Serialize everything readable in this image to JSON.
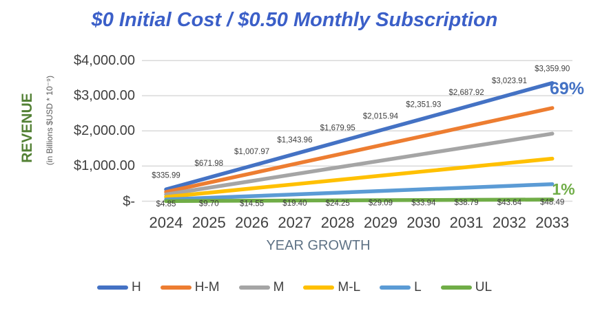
{
  "title": {
    "text": "$0 Initial Cost / $0.50 Monthly Subscription",
    "color": "#3B5FC8"
  },
  "y_axis": {
    "title": "REVENUE",
    "title_color": "#538135",
    "subtitle": "(in Billions $USD * 10⁻⁹)",
    "ticks": [
      "$4,000.00",
      "$3,000.00",
      "$2,000.00",
      "$1,000.00",
      "$-"
    ]
  },
  "x_axis": {
    "title": "YEAR GROWTH"
  },
  "annotations": {
    "h_growth": {
      "text": "69%",
      "color": "#4472C4"
    },
    "ul_growth": {
      "text": "1%",
      "color": "#70AD47"
    }
  },
  "chart_data": {
    "type": "line",
    "title": "$0 Initial Cost / $0.50 Monthly Subscription",
    "xlabel": "YEAR GROWTH",
    "ylabel": "REVENUE (in Billions $USD * 10⁻⁹)",
    "x": [
      2024,
      2025,
      2026,
      2027,
      2028,
      2029,
      2030,
      2031,
      2032,
      2033
    ],
    "ylim": [
      0,
      4000
    ],
    "y_tick_step": 1000,
    "grid": true,
    "legend_position": "bottom",
    "series": [
      {
        "name": "H",
        "color": "#4472C4",
        "values": [
          335.99,
          671.98,
          1007.97,
          1343.96,
          1679.95,
          2015.94,
          2351.93,
          2687.92,
          3023.91,
          3359.9
        ],
        "point_labels": [
          "$335.99",
          "$671.98",
          "$1,007.97",
          "$1,343.96",
          "$1,679.95",
          "$2,015.94",
          "$2,351.93",
          "$2,687.92",
          "$3,023.91",
          "$3,359.90"
        ],
        "label_position": "above"
      },
      {
        "name": "H-M",
        "color": "#ED7D31",
        "values": [
          265,
          530,
          795,
          1060,
          1325,
          1590,
          1855,
          2120,
          2385,
          2650
        ]
      },
      {
        "name": "M",
        "color": "#A5A5A5",
        "values": [
          192,
          384,
          576,
          768,
          960,
          1152,
          1344,
          1536,
          1728,
          1920
        ]
      },
      {
        "name": "M-L",
        "color": "#FFC000",
        "values": [
          121,
          242,
          363,
          484,
          605,
          726,
          847,
          968,
          1089,
          1210
        ]
      },
      {
        "name": "L",
        "color": "#5B9BD5",
        "values": [
          48.5,
          97,
          145.5,
          194,
          242.5,
          291,
          339.5,
          388,
          436.5,
          485
        ]
      },
      {
        "name": "UL",
        "color": "#70AD47",
        "values": [
          4.85,
          9.7,
          14.55,
          19.4,
          24.25,
          29.09,
          33.94,
          38.79,
          43.64,
          48.49
        ],
        "point_labels": [
          "$4.85",
          "$9.70",
          "$14.55",
          "$19.40",
          "$24.25",
          "$29.09",
          "$33.94",
          "$38.79",
          "$43.64",
          "$48.49"
        ],
        "label_position": "below"
      }
    ]
  }
}
